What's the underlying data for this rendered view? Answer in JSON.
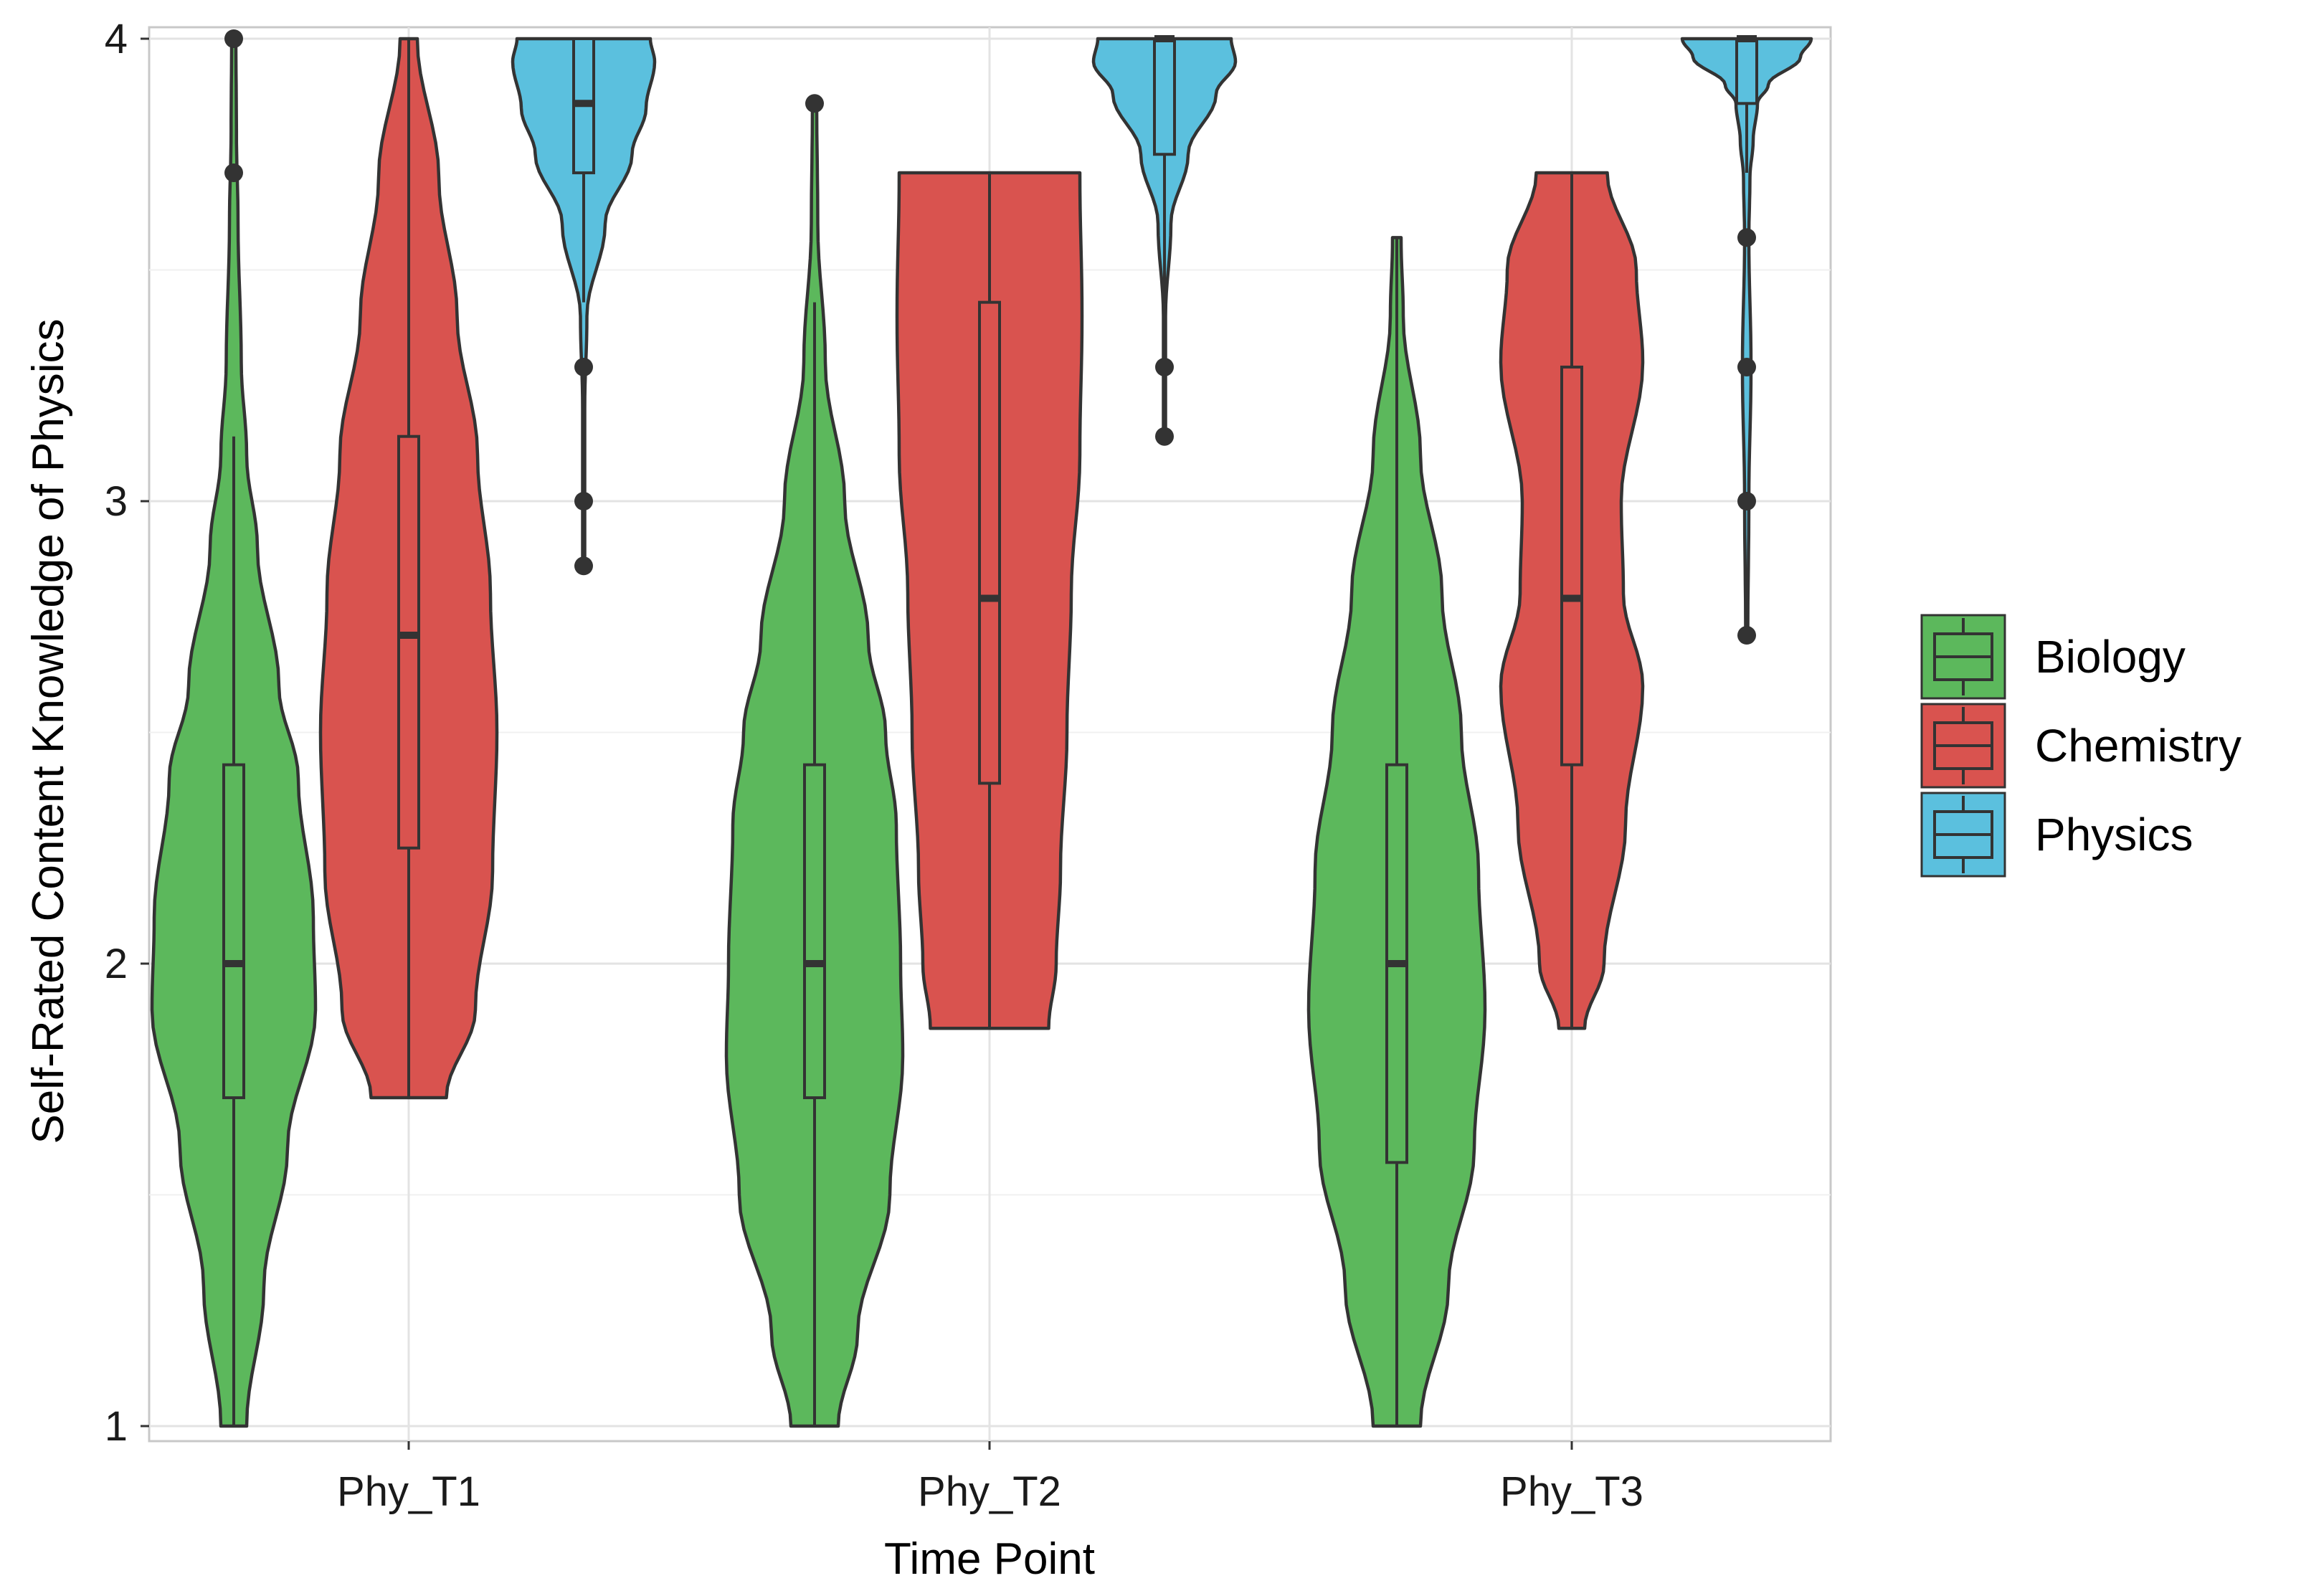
{
  "chart_data": {
    "type": "violin",
    "title": "",
    "xlabel": "Time Point",
    "ylabel": "Self-Rated Content Knowledge of Physics",
    "ylim": [
      1,
      4
    ],
    "yticks": [
      1,
      2,
      3,
      4
    ],
    "categories": [
      "Phy_T1",
      "Phy_T2",
      "Phy_T3"
    ],
    "legend": {
      "position": "right",
      "entries": [
        "Biology",
        "Chemistry",
        "Physics"
      ]
    },
    "colors": {
      "Biology": "#5cb85c",
      "Chemistry": "#d9534f",
      "Physics": "#5bc0de",
      "outline": "#333333",
      "grid": "#e3e3e3"
    },
    "series": [
      {
        "name": "Biology",
        "groups": [
          {
            "category": "Phy_T1",
            "min": 1.0,
            "max": 4.0,
            "density": [
              [
                1.0,
                0.12
              ],
              [
                1.3,
                0.28
              ],
              [
                1.6,
                0.5
              ],
              [
                1.9,
                0.76
              ],
              [
                2.1,
                0.74
              ],
              [
                2.4,
                0.6
              ],
              [
                2.6,
                0.42
              ],
              [
                2.9,
                0.22
              ],
              [
                3.1,
                0.12
              ],
              [
                3.3,
                0.07
              ],
              [
                3.6,
                0.04
              ],
              [
                3.8,
                0.025
              ],
              [
                4.0,
                0.02
              ]
            ],
            "box": {
              "q1": 1.71,
              "median": 2.0,
              "q3": 2.43,
              "wlow": 1.0,
              "whigh": 3.14
            },
            "outliers": [
              3.71,
              4.0
            ]
          },
          {
            "category": "Phy_T2",
            "min": 1.0,
            "max": 3.86,
            "density": [
              [
                1.0,
                0.22
              ],
              [
                1.2,
                0.4
              ],
              [
                1.5,
                0.7
              ],
              [
                1.8,
                0.82
              ],
              [
                2.0,
                0.8
              ],
              [
                2.3,
                0.76
              ],
              [
                2.5,
                0.66
              ],
              [
                2.7,
                0.5
              ],
              [
                3.0,
                0.28
              ],
              [
                3.3,
                0.1
              ],
              [
                3.6,
                0.03
              ],
              [
                3.86,
                0.02
              ]
            ],
            "box": {
              "q1": 1.71,
              "median": 2.0,
              "q3": 2.43,
              "wlow": 1.0,
              "whigh": 3.43
            },
            "outliers": [
              3.86
            ]
          },
          {
            "category": "Phy_T3",
            "min": 1.0,
            "max": 3.57,
            "density": [
              [
                1.0,
                0.22
              ],
              [
                1.3,
                0.48
              ],
              [
                1.6,
                0.72
              ],
              [
                1.9,
                0.82
              ],
              [
                2.2,
                0.76
              ],
              [
                2.5,
                0.6
              ],
              [
                2.8,
                0.42
              ],
              [
                3.1,
                0.22
              ],
              [
                3.4,
                0.06
              ],
              [
                3.57,
                0.04
              ]
            ],
            "box": {
              "q1": 1.57,
              "median": 2.0,
              "q3": 2.43,
              "wlow": 1.0,
              "whigh": 3.57
            },
            "outliers": []
          }
        ]
      },
      {
        "name": "Chemistry",
        "groups": [
          {
            "category": "Phy_T1",
            "min": 1.71,
            "max": 4.0,
            "density": [
              [
                1.71,
                0.35
              ],
              [
                1.9,
                0.62
              ],
              [
                2.2,
                0.78
              ],
              [
                2.5,
                0.82
              ],
              [
                2.8,
                0.76
              ],
              [
                3.1,
                0.64
              ],
              [
                3.4,
                0.45
              ],
              [
                3.7,
                0.28
              ],
              [
                4.0,
                0.08
              ]
            ],
            "box": {
              "q1": 2.25,
              "median": 2.71,
              "q3": 3.14,
              "wlow": 1.71,
              "whigh": 4.0
            },
            "outliers": []
          },
          {
            "category": "Phy_T2",
            "min": 1.86,
            "max": 3.71,
            "density": [
              [
                1.86,
                0.55
              ],
              [
                2.0,
                0.62
              ],
              [
                2.2,
                0.66
              ],
              [
                2.5,
                0.72
              ],
              [
                2.8,
                0.76
              ],
              [
                3.1,
                0.84
              ],
              [
                3.4,
                0.86
              ],
              [
                3.71,
                0.84
              ]
            ],
            "box": {
              "q1": 2.39,
              "median": 2.79,
              "q3": 3.43,
              "wlow": 1.86,
              "whigh": 3.71
            },
            "outliers": []
          },
          {
            "category": "Phy_T3",
            "min": 1.86,
            "max": 3.71,
            "density": [
              [
                1.86,
                0.12
              ],
              [
                2.0,
                0.3
              ],
              [
                2.3,
                0.5
              ],
              [
                2.6,
                0.66
              ],
              [
                2.8,
                0.48
              ],
              [
                3.0,
                0.46
              ],
              [
                3.3,
                0.66
              ],
              [
                3.5,
                0.6
              ],
              [
                3.71,
                0.33
              ]
            ],
            "box": {
              "q1": 2.43,
              "median": 2.79,
              "q3": 3.29,
              "wlow": 1.86,
              "whigh": 3.71
            },
            "outliers": []
          }
        ]
      },
      {
        "name": "Physics",
        "groups": [
          {
            "category": "Phy_T1",
            "min": 2.86,
            "max": 4.0,
            "density": [
              [
                2.86,
                0.01
              ],
              [
                3.2,
                0.01
              ],
              [
                3.4,
                0.03
              ],
              [
                3.6,
                0.2
              ],
              [
                3.75,
                0.45
              ],
              [
                3.85,
                0.58
              ],
              [
                3.95,
                0.66
              ],
              [
                4.0,
                0.62
              ]
            ],
            "box": {
              "q1": 3.71,
              "median": 3.86,
              "q3": 4.0,
              "wlow": 3.43,
              "whigh": 4.0
            },
            "outliers": [
              3.29,
              3.0,
              2.86
            ]
          },
          {
            "category": "Phy_T2",
            "min": 3.14,
            "max": 4.0,
            "density": [
              [
                3.14,
                0.01
              ],
              [
                3.4,
                0.01
              ],
              [
                3.6,
                0.06
              ],
              [
                3.75,
                0.22
              ],
              [
                3.88,
                0.48
              ],
              [
                3.95,
                0.66
              ],
              [
                4.0,
                0.62
              ]
            ],
            "box": {
              "q1": 3.75,
              "median": 4.0,
              "q3": 4.0,
              "wlow": 3.43,
              "whigh": 4.0
            },
            "outliers": [
              3.29,
              3.14
            ]
          },
          {
            "category": "Phy_T3",
            "min": 2.71,
            "max": 4.0,
            "density": [
              [
                2.71,
                0.01
              ],
              [
                3.0,
                0.02
              ],
              [
                3.29,
                0.04
              ],
              [
                3.57,
                0.02
              ],
              [
                3.7,
                0.03
              ],
              [
                3.78,
                0.06
              ],
              [
                3.86,
                0.1
              ],
              [
                3.9,
                0.2
              ],
              [
                3.96,
                0.5
              ],
              [
                4.0,
                0.6
              ]
            ],
            "box": {
              "q1": 3.86,
              "median": 4.0,
              "q3": 4.0,
              "wlow": 3.71,
              "whigh": 4.0
            },
            "outliers": [
              3.57,
              3.29,
              3.0,
              2.71
            ]
          }
        ]
      }
    ]
  }
}
